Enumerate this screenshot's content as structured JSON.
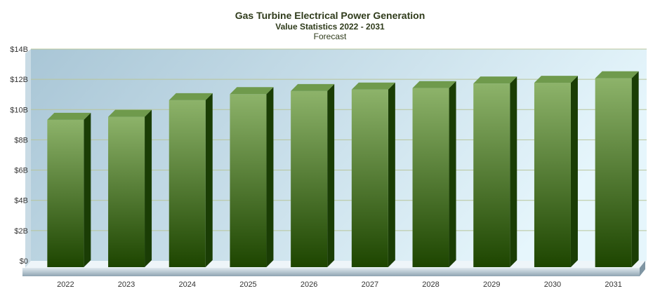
{
  "chart_data": {
    "type": "bar",
    "title": "Gas Turbine Electrical Power Generation",
    "subtitle": "Value Statistics 2022 - 2031",
    "note": "Forecast",
    "categories": [
      "2022",
      "2023",
      "2024",
      "2025",
      "2026",
      "2027",
      "2028",
      "2029",
      "2030",
      "2031"
    ],
    "values": [
      9.6,
      9.8,
      10.9,
      11.3,
      11.5,
      11.6,
      11.7,
      12.0,
      12.05,
      12.35
    ],
    "ylim": [
      0,
      14
    ],
    "yticks": [
      0,
      2,
      4,
      6,
      8,
      10,
      12,
      14
    ],
    "ytick_labels": [
      "$0",
      "$2B",
      "$4B",
      "$6B",
      "$8B",
      "$10B",
      "$12B",
      "$14B"
    ],
    "xlabel": "",
    "ylabel": "",
    "grid": true,
    "colors": {
      "bar_top": "#8db36a",
      "bar_bottom": "#1d4500",
      "bar_side": "#1a3d05",
      "bar_cap": "#6f9a4c",
      "plot_bg_left": "#a9c6d6",
      "plot_bg_right": "#e6f6fc",
      "gridline": "#b8c59a"
    }
  }
}
